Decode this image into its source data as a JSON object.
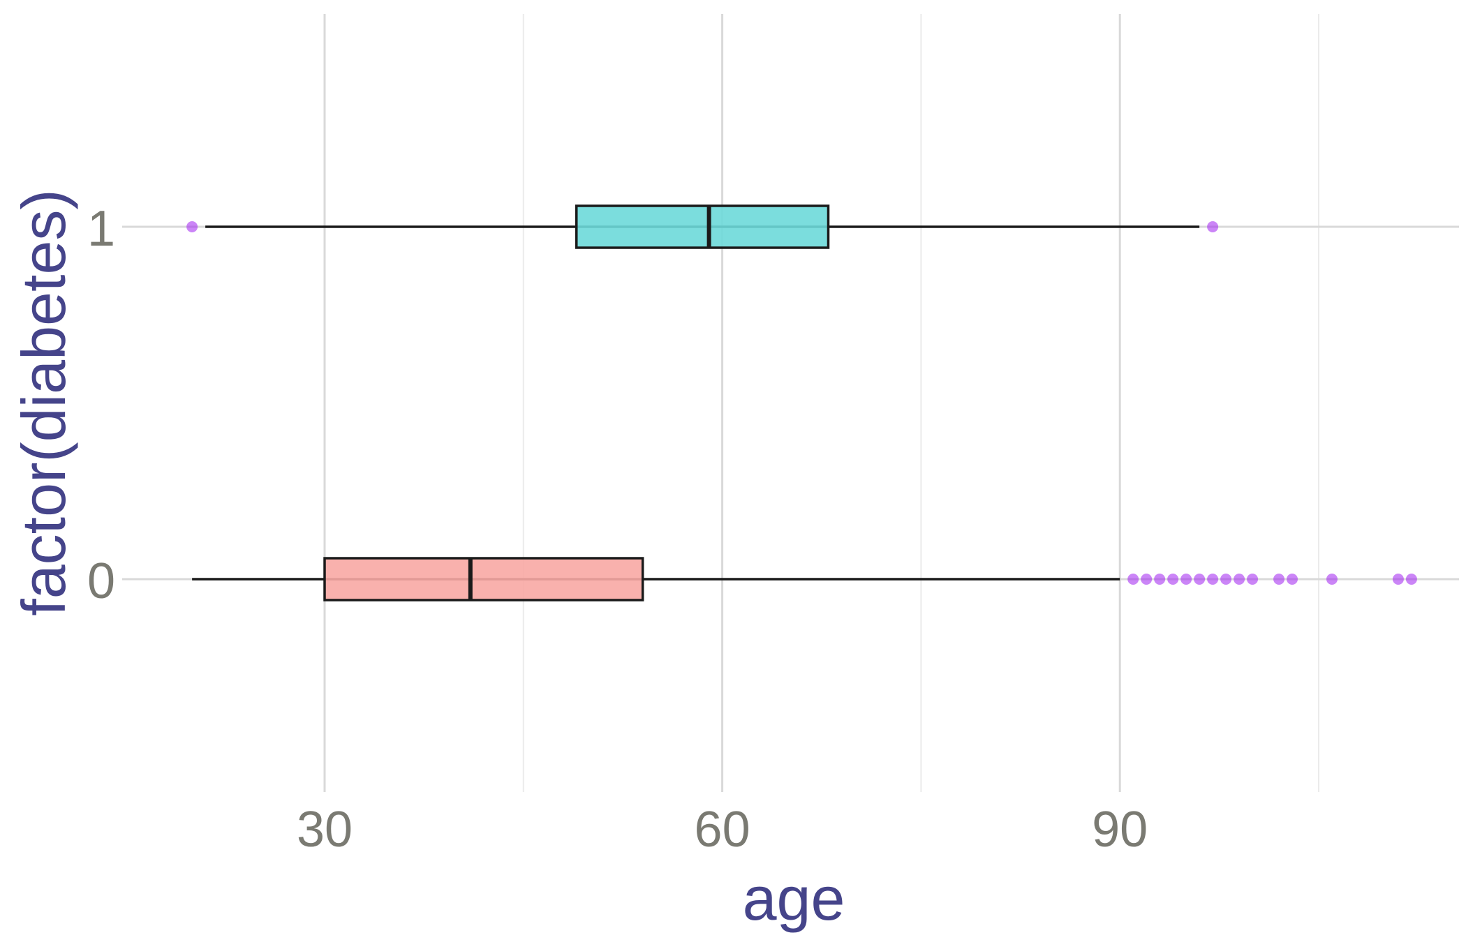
{
  "chart_data": {
    "type": "boxplot",
    "orientation": "horizontal",
    "title": "",
    "xlabel": "age",
    "ylabel": "factor(diabetes)",
    "xlim": [
      10,
      123
    ],
    "x_ticks": [
      30,
      60,
      90
    ],
    "x_minor_gridlines": [
      45,
      75,
      105
    ],
    "categories": [
      "0",
      "1"
    ],
    "grid": true,
    "legend": "none",
    "colors": {
      "axis_title": "#45448a",
      "tick_label": "#7a7a72",
      "grid_major": "#d9d9d9",
      "grid_minor": "#ebebeb",
      "outline": "#1a1a1a",
      "outlier": "#a020f0"
    },
    "boxes": [
      {
        "category": "0",
        "fill": "#f8a9a4",
        "whisker_low": 20,
        "q1": 30,
        "median": 41,
        "q3": 54,
        "whisker_high": 90,
        "outliers": [
          91,
          92,
          93,
          94,
          95,
          96,
          97,
          98,
          99,
          100,
          102,
          103,
          106,
          111,
          112
        ]
      },
      {
        "category": "1",
        "fill": "#6dd9d9",
        "whisker_low": 21,
        "q1": 49,
        "median": 59,
        "q3": 68,
        "whisker_high": 96,
        "outliers": [
          20,
          97
        ]
      }
    ]
  }
}
